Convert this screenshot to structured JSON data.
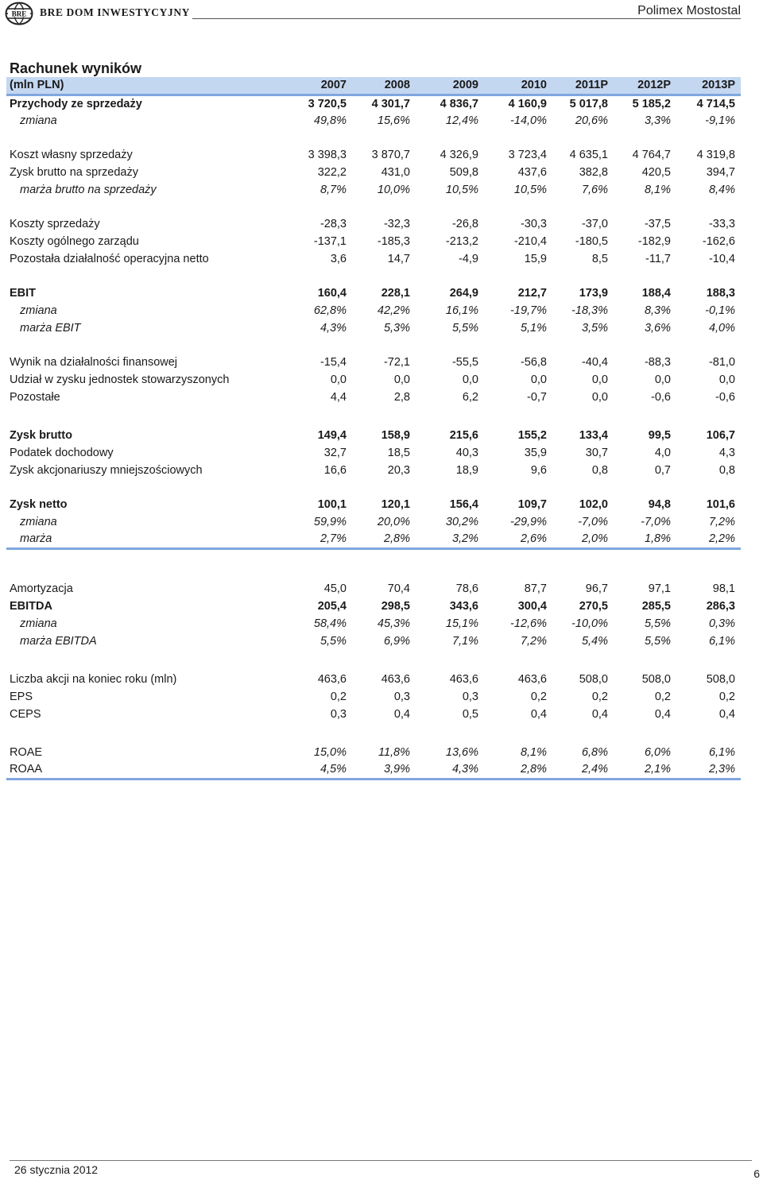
{
  "header": {
    "brand": "BRE DOM INWESTYCYJNY",
    "company": "Polimex Mostostal",
    "logo_text": "BRE",
    "logo_icon": "globe-icon"
  },
  "title": "Rachunek wyników",
  "columns": {
    "label": "(mln PLN)",
    "years": [
      "2007",
      "2008",
      "2009",
      "2010",
      "2011P",
      "2012P",
      "2013P"
    ]
  },
  "rows": {
    "przychody": {
      "label": "Przychody ze sprzedaży",
      "values": [
        "3 720,5",
        "4 301,7",
        "4 836,7",
        "4 160,9",
        "5 017,8",
        "5 185,2",
        "4 714,5"
      ]
    },
    "przychody_zmiana": {
      "label": "zmiana",
      "values": [
        "49,8%",
        "15,6%",
        "12,4%",
        "-14,0%",
        "20,6%",
        "3,3%",
        "-9,1%"
      ]
    },
    "koszt_wlasny": {
      "label": "Koszt własny sprzedaży",
      "values": [
        "3 398,3",
        "3 870,7",
        "4 326,9",
        "3 723,4",
        "4 635,1",
        "4 764,7",
        "4 319,8"
      ]
    },
    "zysk_brutto_sprzedaz": {
      "label": "Zysk brutto na sprzedaży",
      "values": [
        "322,2",
        "431,0",
        "509,8",
        "437,6",
        "382,8",
        "420,5",
        "394,7"
      ]
    },
    "marza_brutto": {
      "label": "marża brutto na sprzedaży",
      "values": [
        "8,7%",
        "10,0%",
        "10,5%",
        "10,5%",
        "7,6%",
        "8,1%",
        "8,4%"
      ]
    },
    "koszty_sprzedazy": {
      "label": "Koszty sprzedaży",
      "values": [
        "-28,3",
        "-32,3",
        "-26,8",
        "-30,3",
        "-37,0",
        "-37,5",
        "-33,3"
      ]
    },
    "koszty_zarzadu": {
      "label": "Koszty ogólnego zarządu",
      "values": [
        "-137,1",
        "-185,3",
        "-213,2",
        "-210,4",
        "-180,5",
        "-182,9",
        "-162,6"
      ]
    },
    "pozostala_dzialalnosc": {
      "label": "Pozostała działalność operacyjna netto",
      "values": [
        "3,6",
        "14,7",
        "-4,9",
        "15,9",
        "8,5",
        "-11,7",
        "-10,4"
      ]
    },
    "ebit": {
      "label": "EBIT",
      "values": [
        "160,4",
        "228,1",
        "264,9",
        "212,7",
        "173,9",
        "188,4",
        "188,3"
      ]
    },
    "ebit_zmiana": {
      "label": "zmiana",
      "values": [
        "62,8%",
        "42,2%",
        "16,1%",
        "-19,7%",
        "-18,3%",
        "8,3%",
        "-0,1%"
      ]
    },
    "marza_ebit": {
      "label": "marża EBIT",
      "values": [
        "4,3%",
        "5,3%",
        "5,5%",
        "5,1%",
        "3,5%",
        "3,6%",
        "4,0%"
      ]
    },
    "wynik_finansowy": {
      "label": "Wynik na działalności finansowej",
      "values": [
        "-15,4",
        "-72,1",
        "-55,5",
        "-56,8",
        "-40,4",
        "-88,3",
        "-81,0"
      ]
    },
    "udzial_stowarzyszonych": {
      "label": "Udział w zysku jednostek stowarzyszonych",
      "values": [
        "0,0",
        "0,0",
        "0,0",
        "0,0",
        "0,0",
        "0,0",
        "0,0"
      ]
    },
    "pozostale": {
      "label": "Pozostałe",
      "values": [
        "4,4",
        "2,8",
        "6,2",
        "-0,7",
        "0,0",
        "-0,6",
        "-0,6"
      ]
    },
    "zysk_brutto": {
      "label": "Zysk brutto",
      "values": [
        "149,4",
        "158,9",
        "215,6",
        "155,2",
        "133,4",
        "99,5",
        "106,7"
      ]
    },
    "podatek": {
      "label": "Podatek dochodowy",
      "values": [
        "32,7",
        "18,5",
        "40,3",
        "35,9",
        "30,7",
        "4,0",
        "4,3"
      ]
    },
    "zysk_mniejszosciowych": {
      "label": "Zysk akcjonariuszy mniejszościowych",
      "values": [
        "16,6",
        "20,3",
        "18,9",
        "9,6",
        "0,8",
        "0,7",
        "0,8"
      ]
    },
    "zysk_netto": {
      "label": "Zysk netto",
      "values": [
        "100,1",
        "120,1",
        "156,4",
        "109,7",
        "102,0",
        "94,8",
        "101,6"
      ]
    },
    "netto_zmiana": {
      "label": "zmiana",
      "values": [
        "59,9%",
        "20,0%",
        "30,2%",
        "-29,9%",
        "-7,0%",
        "-7,0%",
        "7,2%"
      ]
    },
    "netto_marza": {
      "label": "marża",
      "values": [
        "2,7%",
        "2,8%",
        "3,2%",
        "2,6%",
        "2,0%",
        "1,8%",
        "2,2%"
      ]
    },
    "amortyzacja": {
      "label": "Amortyzacja",
      "values": [
        "45,0",
        "70,4",
        "78,6",
        "87,7",
        "96,7",
        "97,1",
        "98,1"
      ]
    },
    "ebitda": {
      "label": "EBITDA",
      "values": [
        "205,4",
        "298,5",
        "343,6",
        "300,4",
        "270,5",
        "285,5",
        "286,3"
      ]
    },
    "ebitda_zmiana": {
      "label": "zmiana",
      "values": [
        "58,4%",
        "45,3%",
        "15,1%",
        "-12,6%",
        "-10,0%",
        "5,5%",
        "0,3%"
      ]
    },
    "marza_ebitda": {
      "label": "marża EBITDA",
      "values": [
        "5,5%",
        "6,9%",
        "7,1%",
        "7,2%",
        "5,4%",
        "5,5%",
        "6,1%"
      ]
    },
    "liczba_akcji": {
      "label": "Liczba akcji na koniec roku (mln)",
      "values": [
        "463,6",
        "463,6",
        "463,6",
        "463,6",
        "508,0",
        "508,0",
        "508,0"
      ]
    },
    "eps": {
      "label": "EPS",
      "values": [
        "0,2",
        "0,3",
        "0,3",
        "0,2",
        "0,2",
        "0,2",
        "0,2"
      ]
    },
    "ceps": {
      "label": "CEPS",
      "values": [
        "0,3",
        "0,4",
        "0,5",
        "0,4",
        "0,4",
        "0,4",
        "0,4"
      ]
    },
    "roae": {
      "label": "ROAE",
      "values": [
        "15,0%",
        "11,8%",
        "13,6%",
        "8,1%",
        "6,8%",
        "6,0%",
        "6,1%"
      ]
    },
    "roaa": {
      "label": "ROAA",
      "values": [
        "4,5%",
        "3,9%",
        "4,3%",
        "2,8%",
        "2,4%",
        "2,1%",
        "2,3%"
      ]
    }
  },
  "footer": {
    "date": "26 stycznia 2012",
    "page": "6"
  },
  "colors": {
    "header_fill": "#c4d7f1",
    "rule": "#7fa6df"
  }
}
